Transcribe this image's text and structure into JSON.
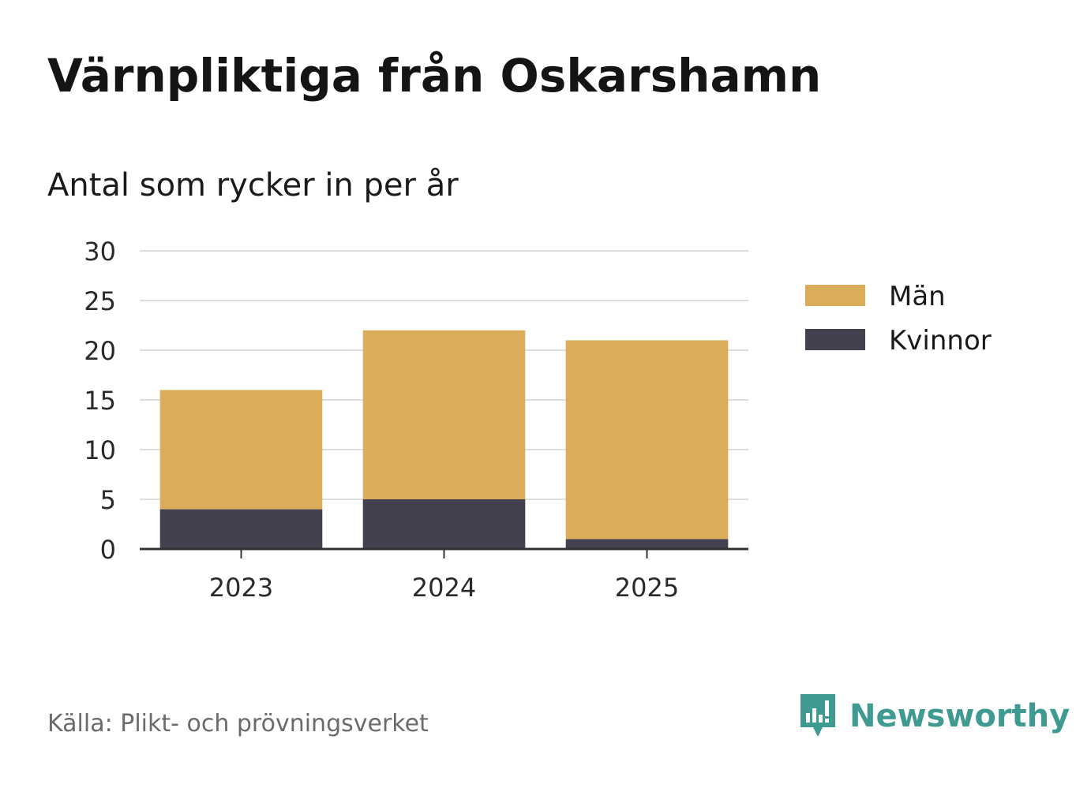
{
  "chart_data": {
    "type": "bar",
    "stacked": true,
    "title": "Värnpliktiga från Oskarshamn",
    "subtitle": "Antal som rycker in per år",
    "categories": [
      "2023",
      "2024",
      "2025"
    ],
    "series": [
      {
        "name": "Kvinnor",
        "values": [
          4,
          5,
          1
        ],
        "color": "#43414f"
      },
      {
        "name": "Män",
        "values": [
          12,
          17,
          20
        ],
        "color": "#dbad5b"
      }
    ],
    "legend_order": [
      "Män",
      "Kvinnor"
    ],
    "y_ticks": [
      "0",
      "5",
      "10",
      "15",
      "20",
      "25",
      "30"
    ],
    "ylim": [
      0,
      30
    ],
    "grid": true,
    "legend_position": "right"
  },
  "footer": {
    "source": "Källa: Plikt- och prövningsverket",
    "brand": "Newsworthy",
    "brand_icon": "newsworthy-logo-icon",
    "brand_color": "#3f9b92"
  }
}
